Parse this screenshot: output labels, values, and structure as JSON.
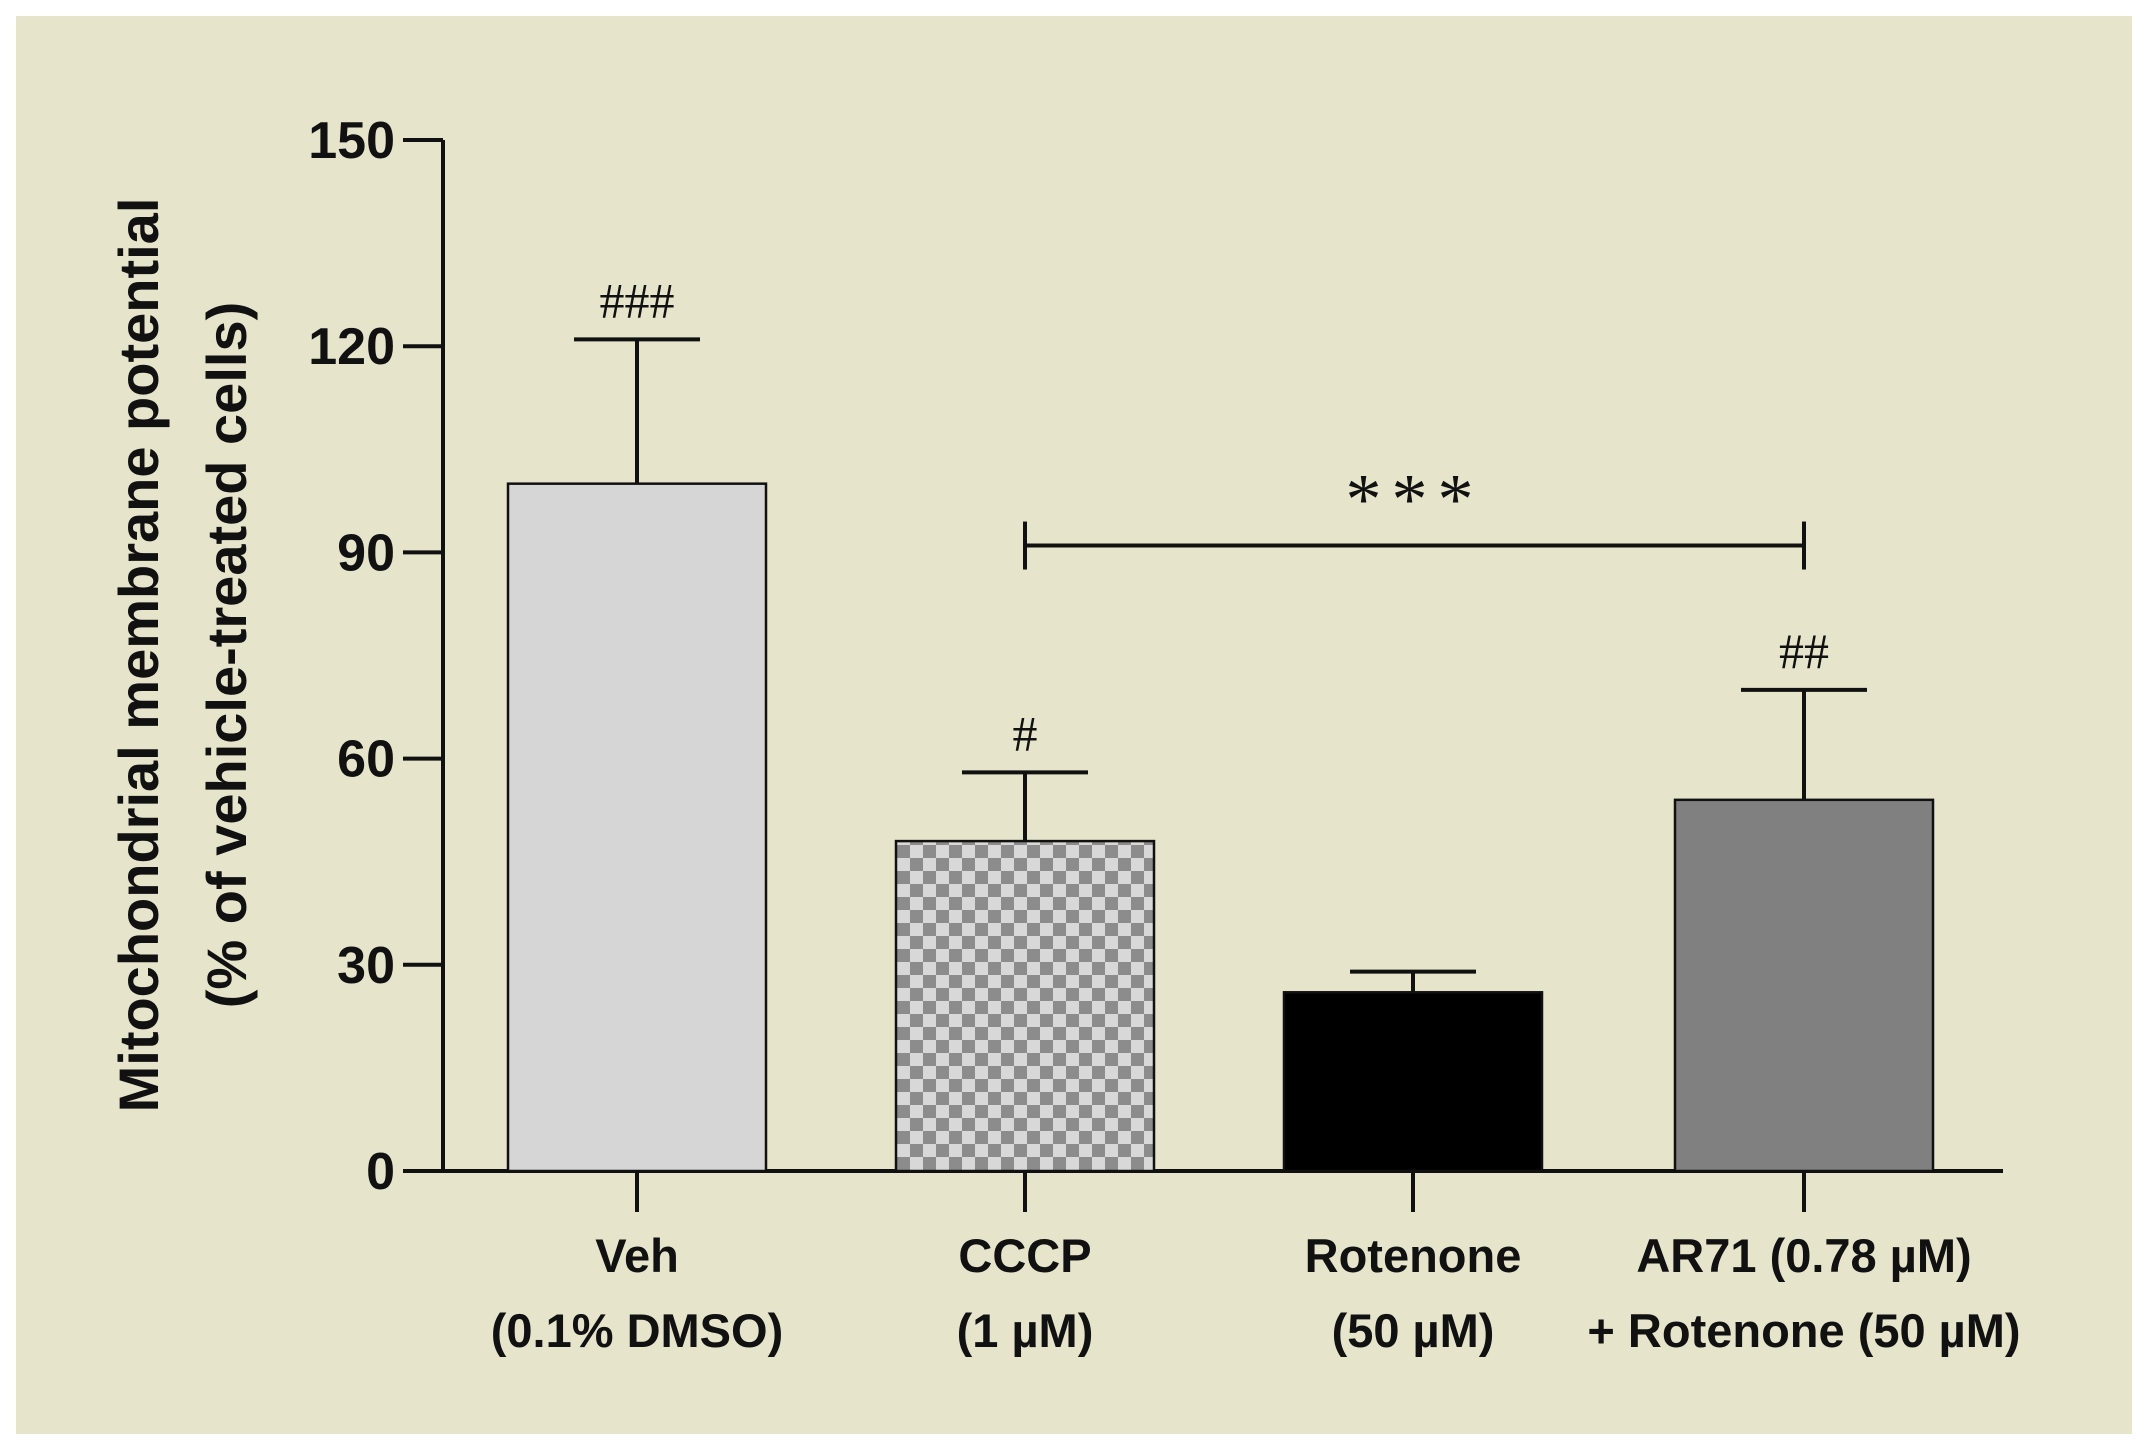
{
  "chart_data": {
    "type": "bar",
    "title": "",
    "xlabel": "",
    "ylabel_line1": "Mitochondrial membrane potential",
    "ylabel_line2": "(% of vehicle-treated cells)",
    "ylim": [
      0,
      150
    ],
    "yticks": [
      0,
      30,
      60,
      90,
      120,
      150
    ],
    "categories": [
      {
        "line1": "Veh",
        "line2": "(0.1% DMSO)"
      },
      {
        "line1": "CCCP",
        "line2": "(1 µM)"
      },
      {
        "line1": "Rotenone",
        "line2": "(50 µM)"
      },
      {
        "line1": "AR71 (0.78 µM)",
        "line2": "+ Rotenone (50 µM)"
      }
    ],
    "values": [
      100,
      48,
      26,
      54
    ],
    "errors": [
      21,
      10,
      3,
      16
    ],
    "bar_styles": [
      "light-gray",
      "checker",
      "black",
      "dark-gray"
    ],
    "bar_colors": {
      "light-gray": "#d6d6d6",
      "checker-a": "#8c8c8c",
      "checker-b": "#d8d8d8",
      "black": "#000000",
      "dark-gray": "#808080"
    },
    "annotations": [
      "###",
      "#",
      "",
      "##"
    ],
    "comparison": {
      "from_index": 1,
      "to_index": 3,
      "label": "***"
    }
  }
}
